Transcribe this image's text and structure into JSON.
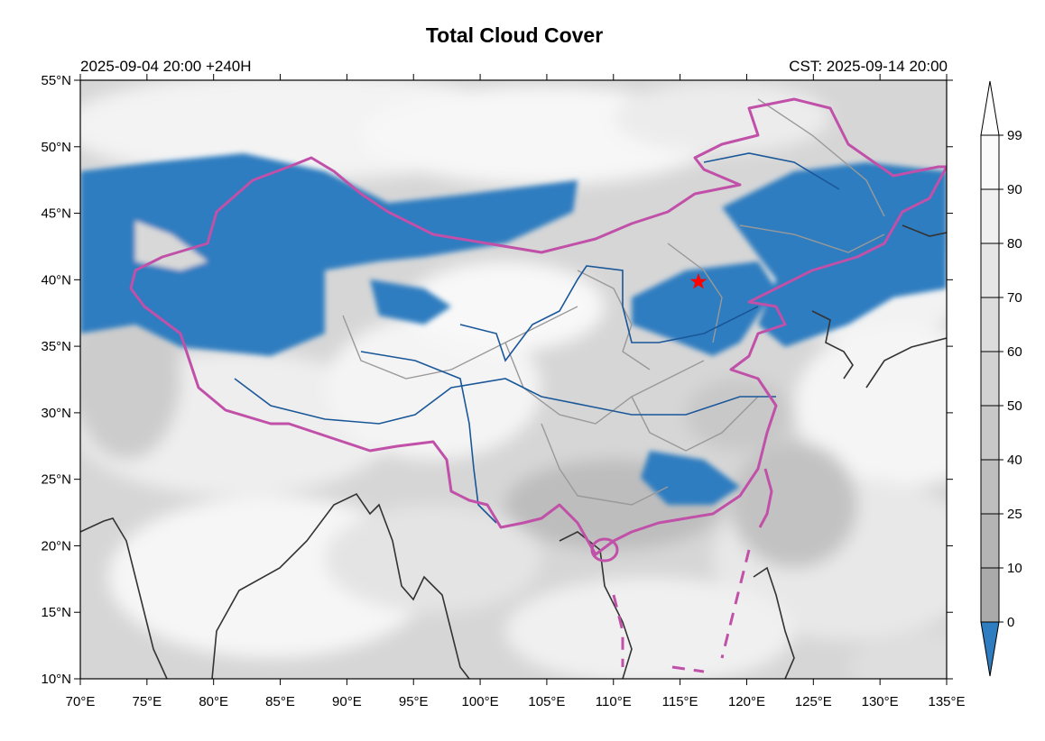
{
  "title": "Total Cloud Cover",
  "init_label": "2025-09-04 20:00 +240H",
  "valid_label": "CST: 2025-09-14 20:00",
  "map": {
    "lon_range": [
      70,
      135
    ],
    "lat_range": [
      10,
      55
    ],
    "lon_ticks": [
      "70°E",
      "75°E",
      "80°E",
      "85°E",
      "90°E",
      "95°E",
      "100°E",
      "105°E",
      "110°E",
      "115°E",
      "120°E",
      "125°E",
      "130°E",
      "135°E"
    ],
    "lat_ticks": [
      "55°N",
      "50°N",
      "45°N",
      "40°N",
      "35°N",
      "30°N",
      "25°N",
      "20°N",
      "15°N",
      "10°N"
    ],
    "marker": {
      "name": "red-star-marker",
      "lon": 116.4,
      "lat": 39.9,
      "color": "#ff0000"
    },
    "colors": {
      "clear_sky": "#2e7dc0",
      "china_border": "#c050a8",
      "rivers": "#1a5799",
      "province_lines": "#999999",
      "coastline": "#333333"
    }
  },
  "colorbar": {
    "labels": [
      "99",
      "90",
      "80",
      "70",
      "60",
      "50",
      "40",
      "25",
      "10",
      "0"
    ],
    "under_color": "#2e7dc0"
  }
}
